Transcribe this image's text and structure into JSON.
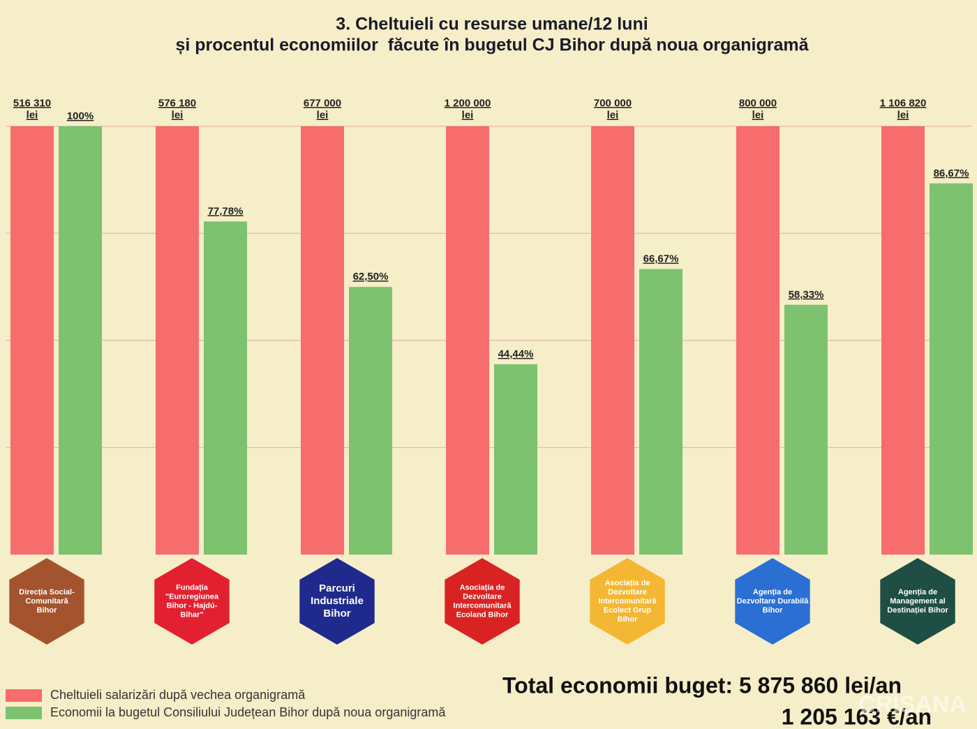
{
  "chart_data": {
    "type": "bar",
    "title": "3. Cheltuieli cu resurse umane/12 luni",
    "subtitle": "și procentul economiilor  făcute în bugetul CJ Bihor după noua organigramă",
    "categories": [
      "Direcția Social-\nComunitară\nBihor",
      "Fundația\n\"Euroregiunea\nBihor - Hajdú-\nBihar\"",
      "Parcuri\nIndustriale\nBihor",
      "Asociația de\nDezvoltare\nIntercomunitară\nEcoland Bihor",
      "Asociația de\nDezvoltare\nIntercomunitară\nEcolect Grup\nBihor",
      "Agenția de\nDezvoltare Durabilă\nBihor",
      "Agenția de\nManagement al\nDestinației Bihor"
    ],
    "category_colors": [
      "#a4532f",
      "#e3202f",
      "#1f2a8c",
      "#d92322",
      "#f3b733",
      "#2b6fd5",
      "#1e4e44"
    ],
    "series": [
      {
        "name": "Cheltuieli salarizări după vechea organigramă",
        "color": "#f76c6c",
        "values": [
          516310,
          576180,
          677000,
          1200000,
          700000,
          800000,
          1106820
        ],
        "value_labels": [
          "516 310\nlei",
          "576 180\nlei",
          "677 000\nlei",
          "1 200 000\nlei",
          "700 000\nlei",
          "800 000\nlei",
          "1 106 820\nlei"
        ]
      },
      {
        "name": "Economii la bugetul Consiliului Județean Bihor după noua organigramă",
        "color": "#7dc26f",
        "values": [
          100,
          77.78,
          62.5,
          44.44,
          66.67,
          58.33,
          86.67
        ],
        "value_labels": [
          "100%",
          "77,78%",
          "62,50%",
          "44,44%",
          "66,67%",
          "58,33%",
          "86,67%"
        ]
      }
    ],
    "ylim": [
      0,
      100
    ],
    "yticks": [
      25,
      50,
      75,
      100
    ],
    "grid": true,
    "total_line_1": "Total economii buget: 5 875 860 lei/an",
    "total_line_2": "1 205 163 €/an",
    "watermark": "CRIȘANA"
  }
}
